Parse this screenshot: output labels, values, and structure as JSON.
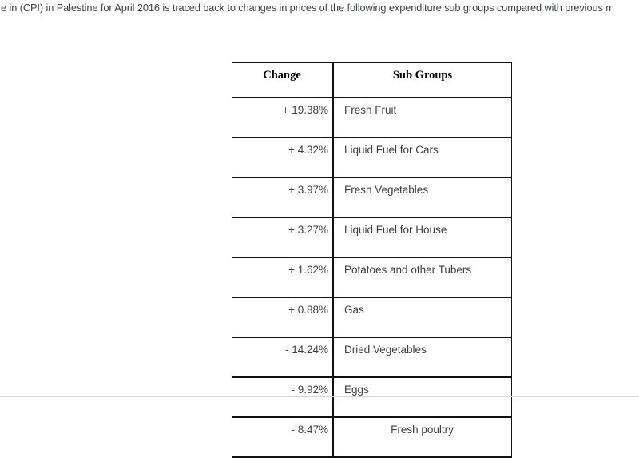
{
  "document": {
    "intro_text": "e in (CPI) in Palestine for April 2016 is traced back to changes in prices of the following expenditure sub groups compared with previous m"
  },
  "table": {
    "headers": {
      "change": "Change",
      "sub_groups": "Sub Groups"
    },
    "rows": [
      {
        "change": "+ 19.38%",
        "label": "Fresh Fruit",
        "change_muted": true,
        "label_muted": true,
        "label_align": "left"
      },
      {
        "change": "+ 4.32%",
        "label": "Liquid Fuel for Cars",
        "change_muted": false,
        "label_muted": false,
        "label_align": "left"
      },
      {
        "change": "+ 3.97%",
        "label": "Fresh Vegetables",
        "change_muted": false,
        "label_muted": true,
        "label_align": "left"
      },
      {
        "change": "+ 3.27%",
        "label": "Liquid Fuel for House",
        "change_muted": false,
        "label_muted": false,
        "label_align": "left"
      },
      {
        "change": "+ 1.62%",
        "label": "Potatoes and other Tubers",
        "change_muted": false,
        "label_muted": false,
        "label_align": "left"
      },
      {
        "change": "+ 0.88%",
        "label": "Gas",
        "change_muted": false,
        "label_muted": false,
        "label_align": "left"
      },
      {
        "change": "- 14.24%",
        "label": "Dried Vegetables",
        "change_muted": false,
        "label_muted": false,
        "label_align": "left"
      },
      {
        "change": "- 9.92%",
        "label": "Eggs",
        "change_muted": true,
        "label_muted": true,
        "label_align": "left"
      },
      {
        "change": "- 8.47%",
        "label": "Fresh poultry",
        "change_muted": true,
        "label_muted": false,
        "label_align": "center"
      }
    ]
  },
  "colors": {
    "table_border": "#111111",
    "dark_text": "#3d3d3d",
    "muted_text": "#8c8c8c",
    "intro_text": "#3f4042",
    "header_text": "#000000",
    "page_edge_line": "#d7d7d7",
    "background": "#ffffff"
  }
}
